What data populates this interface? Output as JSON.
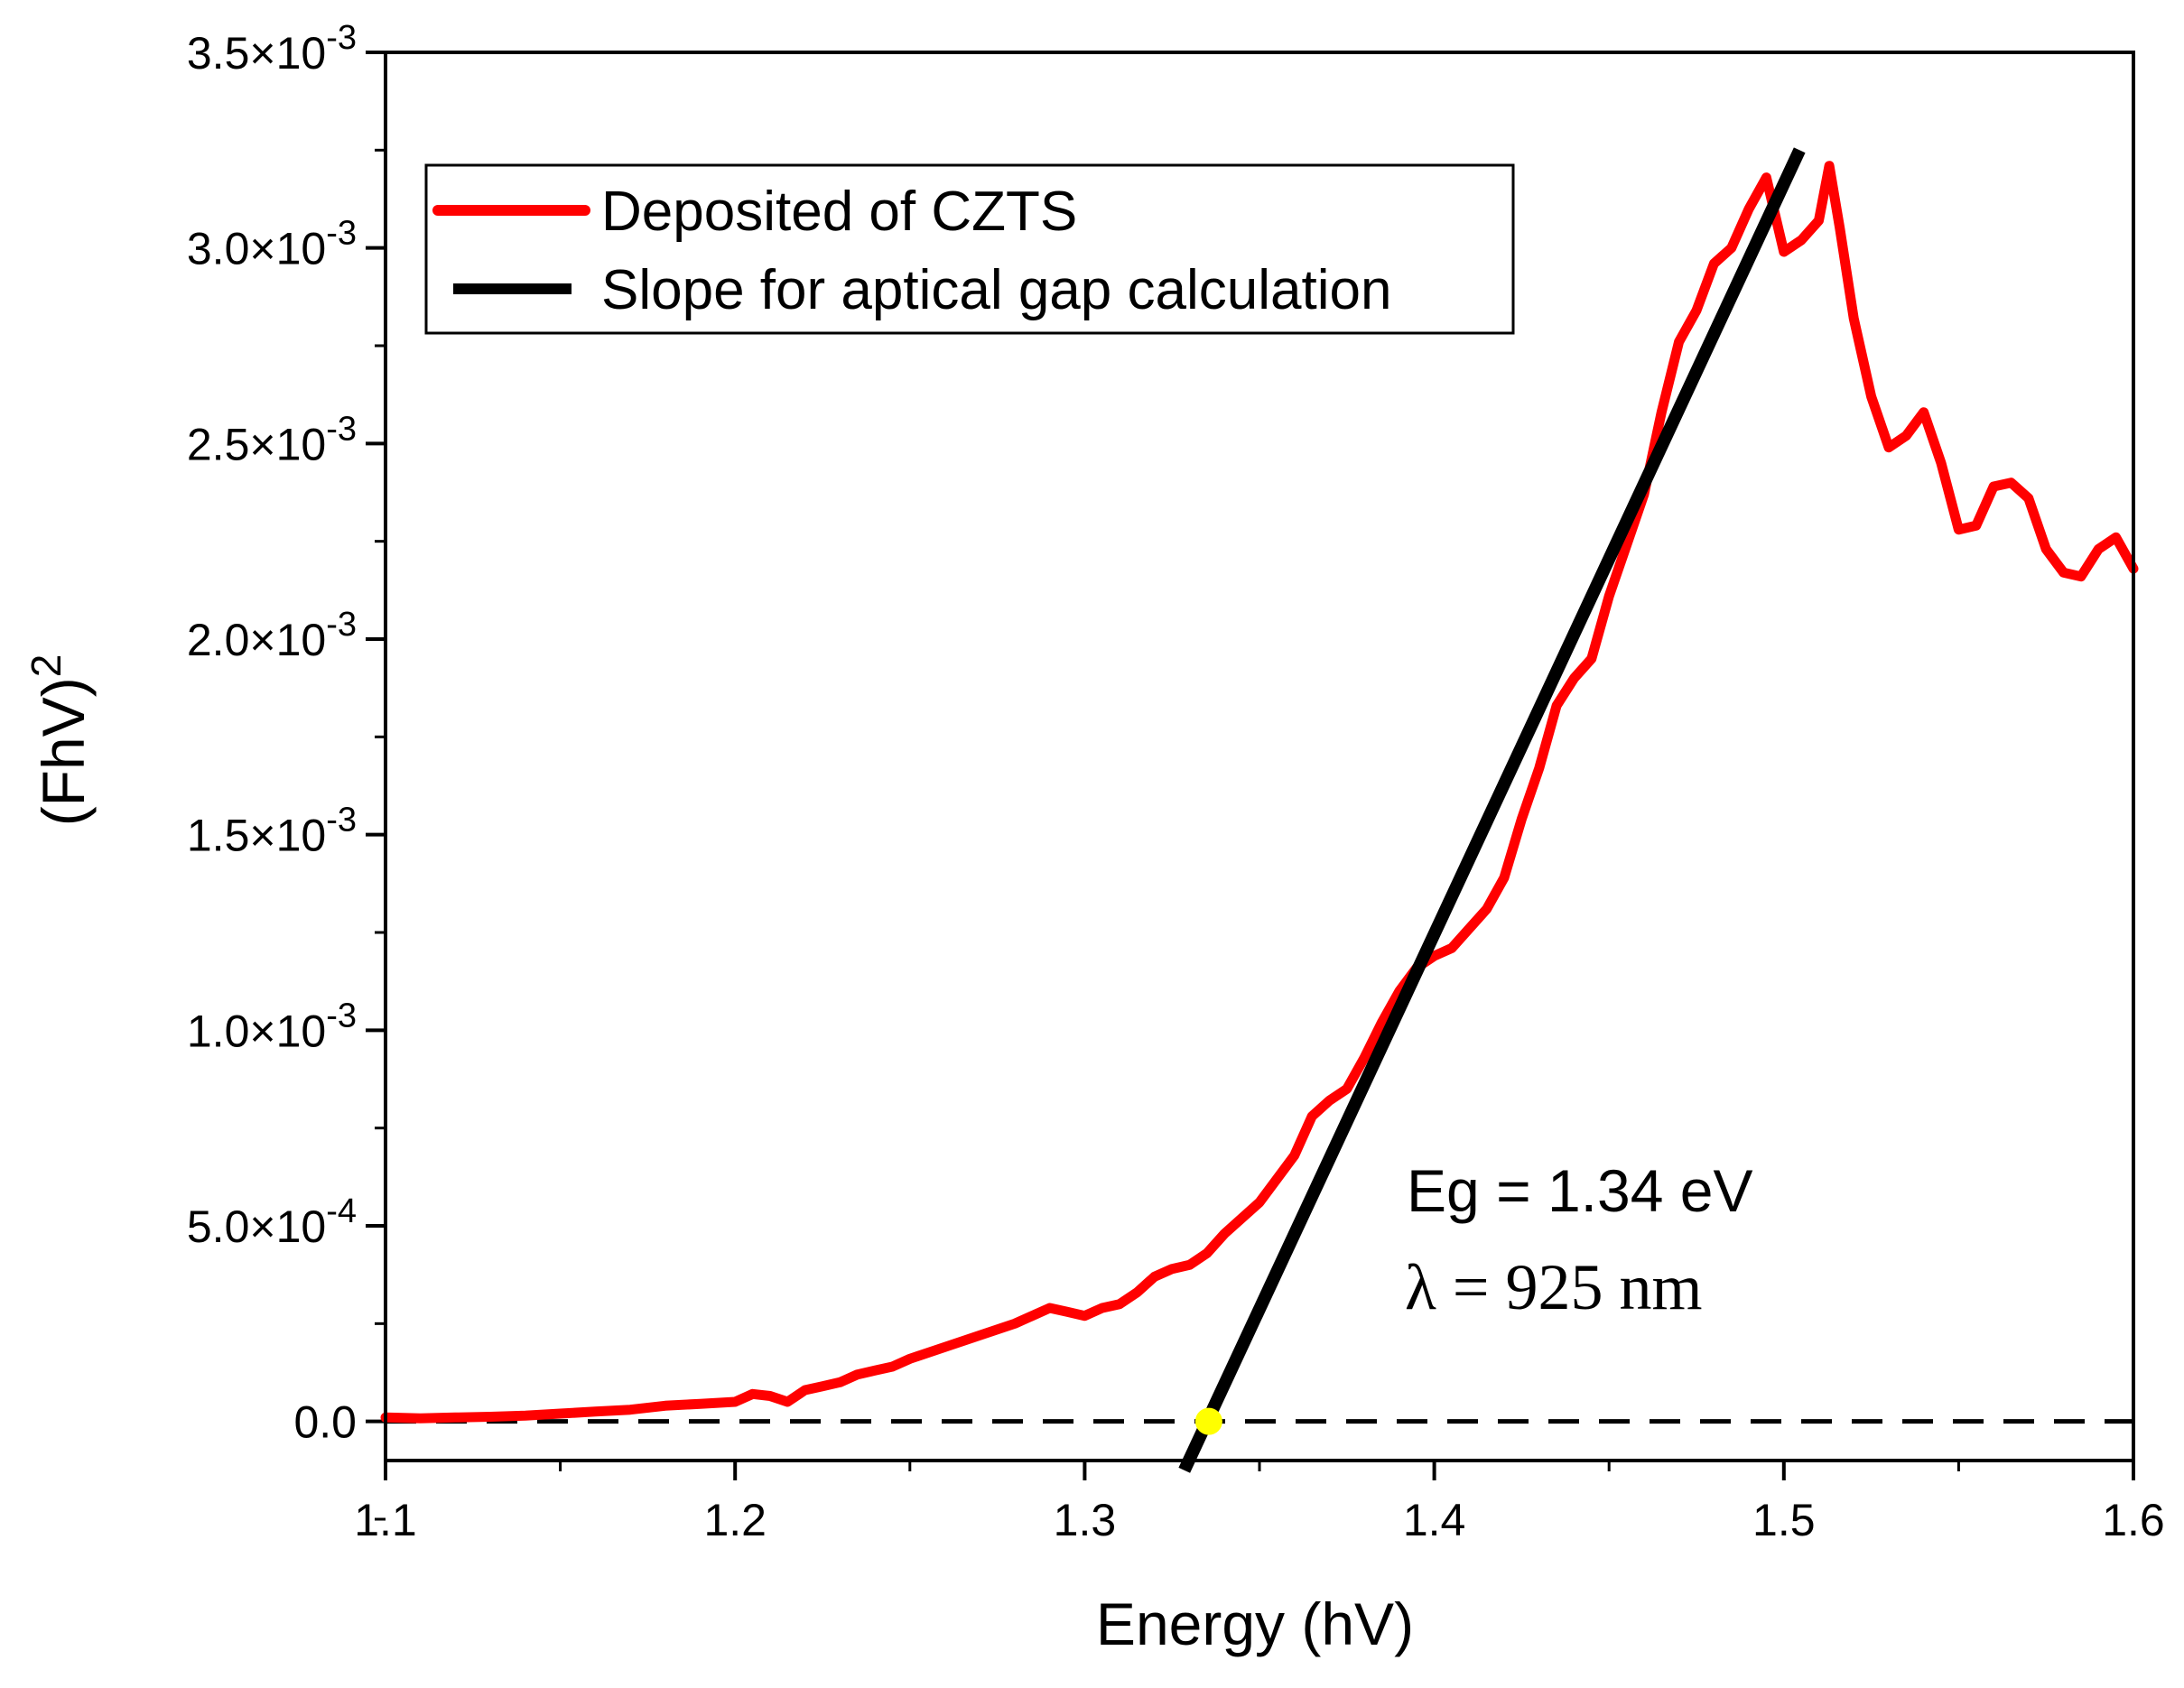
{
  "chart_data": {
    "type": "line",
    "xlabel": "Energy (hV)",
    "ylabel_base": "(FhV)",
    "ylabel_sup": "2",
    "xlim": [
      1.1,
      1.6
    ],
    "ylim": [
      -0.0001,
      0.0035
    ],
    "x_ticks": [
      {
        "value": 1.1,
        "label": "1.1"
      },
      {
        "value": 1.2,
        "label": "1.2"
      },
      {
        "value": 1.3,
        "label": "1.3"
      },
      {
        "value": 1.4,
        "label": "1.4"
      },
      {
        "value": 1.5,
        "label": "1.5"
      },
      {
        "value": 1.6,
        "label": "1.6"
      }
    ],
    "y_ticks": [
      {
        "value": 0.0,
        "label": "0.0",
        "mant": "",
        "exp": ""
      },
      {
        "value": 0.0005,
        "label": "5.0×10-4",
        "mant": "5.0×10",
        "exp": "-4"
      },
      {
        "value": 0.001,
        "label": "1.0×10-3",
        "mant": "1.0×10",
        "exp": "-3"
      },
      {
        "value": 0.0015,
        "label": "1.5×10-3",
        "mant": "1.5×10",
        "exp": "-3"
      },
      {
        "value": 0.002,
        "label": "2.0×10-3",
        "mant": "2.0×10",
        "exp": "-3"
      },
      {
        "value": 0.0025,
        "label": "2.5×10-3",
        "mant": "2.5×10",
        "exp": "-3"
      },
      {
        "value": 0.003,
        "label": "3.0×10-3",
        "mant": "3.0×10",
        "exp": "-3"
      },
      {
        "value": 0.0035,
        "label": "3.5×10-3",
        "mant": "3.5×10",
        "exp": "-3"
      }
    ],
    "series": [
      {
        "name": "Deposited of CZTS",
        "color": "#ff0000",
        "x": [
          1.1,
          1.11,
          1.12,
          1.13,
          1.14,
          1.15,
          1.16,
          1.17,
          1.18,
          1.19,
          1.2,
          1.205,
          1.21,
          1.215,
          1.22,
          1.225,
          1.23,
          1.235,
          1.24,
          1.245,
          1.25,
          1.26,
          1.27,
          1.28,
          1.285,
          1.29,
          1.295,
          1.3,
          1.305,
          1.31,
          1.315,
          1.32,
          1.325,
          1.33,
          1.335,
          1.34,
          1.35,
          1.36,
          1.365,
          1.37,
          1.375,
          1.38,
          1.385,
          1.39,
          1.395,
          1.4,
          1.405,
          1.41,
          1.415,
          1.42,
          1.425,
          1.43,
          1.435,
          1.44,
          1.445,
          1.45,
          1.455,
          1.46,
          1.465,
          1.47,
          1.475,
          1.48,
          1.485,
          1.49,
          1.495,
          1.5,
          1.505,
          1.51,
          1.513,
          1.516,
          1.52,
          1.525,
          1.53,
          1.535,
          1.54,
          1.545,
          1.55,
          1.555,
          1.56,
          1.565,
          1.57,
          1.575,
          1.58,
          1.585,
          1.59,
          1.595,
          1.6
        ],
        "y": [
          1e-05,
          8e-06,
          1e-05,
          1.2e-05,
          1.5e-05,
          2e-05,
          2.5e-05,
          3e-05,
          4e-05,
          4.5e-05,
          5e-05,
          7e-05,
          6.5e-05,
          5e-05,
          8e-05,
          9e-05,
          0.0001,
          0.00012,
          0.00013,
          0.00014,
          0.00016,
          0.00019,
          0.00022,
          0.00025,
          0.00027,
          0.00029,
          0.00028,
          0.00027,
          0.00029,
          0.0003,
          0.00033,
          0.00037,
          0.00039,
          0.0004,
          0.00043,
          0.00048,
          0.00056,
          0.00068,
          0.00078,
          0.00082,
          0.00085,
          0.00093,
          0.00102,
          0.0011,
          0.00116,
          0.00119,
          0.00121,
          0.00126,
          0.00131,
          0.00139,
          0.00154,
          0.00167,
          0.00183,
          0.0019,
          0.00195,
          0.00211,
          0.00224,
          0.00237,
          0.00258,
          0.00276,
          0.00284,
          0.00296,
          0.003,
          0.0031,
          0.00318,
          0.00299,
          0.00302,
          0.00307,
          0.00321,
          0.00305,
          0.00282,
          0.00262,
          0.00249,
          0.00252,
          0.00258,
          0.00245,
          0.00228,
          0.00229,
          0.00239,
          0.0024,
          0.00236,
          0.00223,
          0.00217,
          0.00216,
          0.00223,
          0.00226,
          0.00218
        ]
      },
      {
        "name": "Slope for aptical gap calculation",
        "color": "#000000",
        "x": [
          1.3285,
          1.5045
        ],
        "y": [
          -0.000125,
          0.00325
        ]
      }
    ],
    "baseline": {
      "y": 0.0,
      "style": "dashed"
    },
    "intercept_point": {
      "x": 1.3355,
      "y": 0.0,
      "color": "#ffff00"
    },
    "legend": {
      "position": "top-left"
    },
    "annotations": {
      "eg": "Eg = 1.34 eV",
      "lambda": "λ = 925 nm"
    }
  }
}
